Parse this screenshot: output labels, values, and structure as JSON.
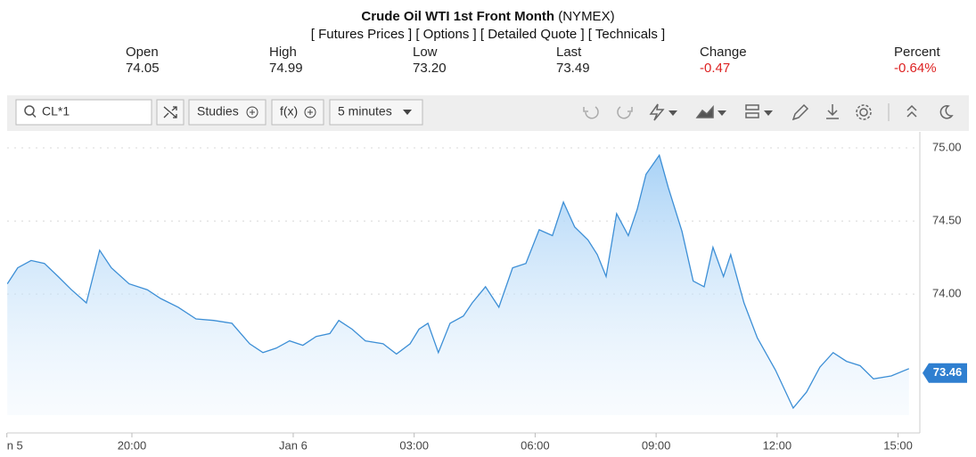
{
  "header": {
    "title": "Crude Oil WTI 1st Front Month",
    "exchange": "(NYMEX)",
    "links": [
      "[ Futures Prices ]",
      "[ Options ]",
      "[ Detailed Quote ]",
      "[ Technicals ]"
    ]
  },
  "quote": [
    {
      "label": "Open",
      "value": "74.05"
    },
    {
      "label": "High",
      "value": "74.99"
    },
    {
      "label": "Low",
      "value": "73.20"
    },
    {
      "label": "Last",
      "value": "73.49"
    },
    {
      "label": "Change",
      "value": "-0.47"
    },
    {
      "label": "Percent",
      "value": "-0.64%"
    }
  ],
  "toolbar": {
    "symbol": "CL*1",
    "studies": "Studies",
    "functions": "f(x)",
    "interval": "5 minutes"
  },
  "chart_data": {
    "type": "line",
    "color": "#3d8fd6",
    "x": [
      16.91,
      17.17,
      17.5,
      17.83,
      18.17,
      18.5,
      18.87,
      19.2,
      19.49,
      19.93,
      20.38,
      20.71,
      21.15,
      21.59,
      22.03,
      22.48,
      22.92,
      23.25,
      23.58,
      23.91,
      24.24,
      24.57,
      24.91,
      25.13,
      25.46,
      25.79,
      26.23,
      26.56,
      26.9,
      27.12,
      27.34,
      27.6,
      27.89,
      28.22,
      28.44,
      28.77,
      29.1,
      29.44,
      29.77,
      30.1,
      30.43,
      30.7,
      30.98,
      31.31,
      31.54,
      31.76,
      32.02,
      32.31,
      32.53,
      32.75,
      33.08,
      33.3,
      33.64,
      33.92,
      34.19,
      34.41,
      34.67,
      34.85,
      35.18,
      35.51,
      35.96,
      36.4,
      36.73,
      37.06,
      37.39,
      37.72,
      38.06,
      38.39,
      38.83,
      39.27
    ],
    "values": [
      74.07,
      74.18,
      74.23,
      74.21,
      74.12,
      74.03,
      73.94,
      74.3,
      74.18,
      74.07,
      74.03,
      73.97,
      73.91,
      73.83,
      73.82,
      73.8,
      73.66,
      73.6,
      73.63,
      73.68,
      73.65,
      73.71,
      73.73,
      73.82,
      73.76,
      73.68,
      73.66,
      73.59,
      73.66,
      73.76,
      73.8,
      73.6,
      73.8,
      73.85,
      73.94,
      74.05,
      73.91,
      74.18,
      74.21,
      74.44,
      74.4,
      74.63,
      74.46,
      74.37,
      74.27,
      74.12,
      74.55,
      74.4,
      74.58,
      74.82,
      74.95,
      74.73,
      74.43,
      74.09,
      74.05,
      74.32,
      74.12,
      74.27,
      73.94,
      73.7,
      73.48,
      73.22,
      73.33,
      73.5,
      73.6,
      73.54,
      73.51,
      73.42,
      73.44,
      73.49
    ],
    "xlim": [
      16.906,
      39.54
    ],
    "ylim": [
      73.05,
      75.11
    ],
    "xticks": [
      {
        "value": 16.9,
        "label": "n 5"
      },
      {
        "value": 20,
        "label": "20:00"
      },
      {
        "value": 24,
        "label": "Jan 6"
      },
      {
        "value": 27,
        "label": "03:00"
      },
      {
        "value": 30,
        "label": "06:00"
      },
      {
        "value": 33,
        "label": "09:00"
      },
      {
        "value": 36,
        "label": "12:00"
      },
      {
        "value": 39,
        "label": "15:00"
      }
    ],
    "yticks": [
      {
        "value": 74,
        "label": "74.00"
      },
      {
        "value": 74.5,
        "label": "74.50"
      },
      {
        "value": 75,
        "label": "75.00"
      }
    ],
    "grid": true,
    "last_price": 73.46
  }
}
